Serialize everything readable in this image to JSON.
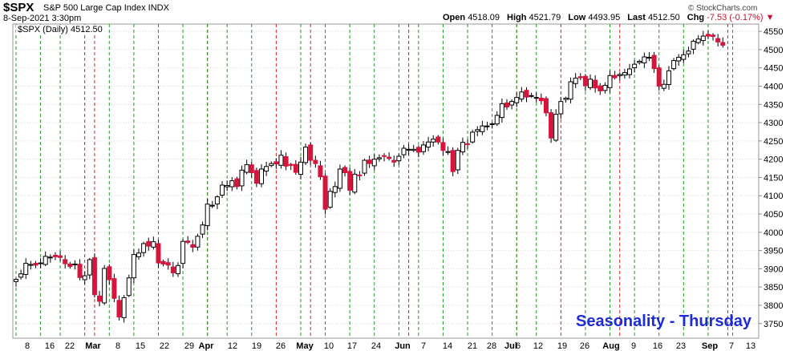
{
  "header": {
    "ticker": "$SPX",
    "description": "S&P 500 Large Cap Index INDX",
    "date": "8-Sep-2021 3:30pm",
    "watermark": "© StockCharts.com",
    "open_label": "Open",
    "open": "4518.09",
    "high_label": "High",
    "high": "4521.79",
    "low_label": "Low",
    "low": "4493.95",
    "last_label": "Last",
    "last": "4512.50",
    "chg_label": "Chg",
    "chg": "-7.53 (-0.17%)",
    "chg_arrow": "▼"
  },
  "legend": "$SPX (Daily) 4512.50",
  "annotation": "Seasonality - Thursday",
  "colors": {
    "up": "#ffffff",
    "down": "#d6143c",
    "green_line": "#1e9a1e",
    "red_line": "#d21e1e",
    "title": "#1f2bd6"
  },
  "chart_data": {
    "type": "candlestick",
    "y_axis": {
      "min": 3710,
      "max": 4570,
      "ticks": [
        3750,
        3800,
        3850,
        3900,
        3950,
        4000,
        4050,
        4100,
        4150,
        4200,
        4250,
        4300,
        4350,
        4400,
        4450,
        4500,
        4550
      ],
      "position": "right"
    },
    "x_labels": [
      "8",
      "16",
      "22",
      "Mar",
      "8",
      "15",
      "22",
      "29",
      "Apr",
      "12",
      "19",
      "26",
      "May",
      "10",
      "17",
      "24",
      "Jun",
      "7",
      "14",
      "21",
      "28",
      "Jul",
      "6",
      "12",
      "19",
      "26",
      "Aug",
      "9",
      "16",
      "23",
      "Sep",
      "7",
      "13"
    ],
    "start_date": "2021-02-04",
    "vertical_lines": {
      "thursday_green_dates": [
        "2021-02-04",
        "2021-02-11",
        "2021-02-18",
        "2021-03-04",
        "2021-03-11",
        "2021-03-18",
        "2021-03-25",
        "2021-04-01",
        "2021-04-08",
        "2021-04-15",
        "2021-04-29",
        "2021-05-06",
        "2021-05-13",
        "2021-05-20",
        "2021-05-27",
        "2021-06-03",
        "2021-06-10",
        "2021-06-17",
        "2021-06-24",
        "2021-07-01",
        "2021-07-08",
        "2021-07-22",
        "2021-07-29",
        "2021-08-05",
        "2021-08-12",
        "2021-08-19",
        "2021-08-26",
        "2021-09-02"
      ],
      "thursday_red_dates": [
        "2021-02-25",
        "2021-04-22",
        "2021-07-15"
      ],
      "month_red_dates": [
        "2021-03-01",
        "2021-04-01",
        "2021-05-03",
        "2021-06-01",
        "2021-07-01",
        "2021-08-02",
        "2021-09-01"
      ]
    },
    "closes": [
      3871,
      3886,
      3915,
      3912,
      3910,
      3916,
      3934,
      3932,
      3933,
      3931,
      3914,
      3906,
      3913,
      3876,
      3881,
      3925,
      3829,
      3811,
      3901,
      3870,
      3819,
      3768,
      3821,
      3875,
      3939,
      3943,
      3969,
      3962,
      3974,
      3916,
      3913,
      3910,
      3889,
      3909,
      3975,
      3972,
      3959,
      3989,
      4020,
      4077,
      4074,
      4097,
      4129,
      4128,
      4141,
      4125,
      4170,
      4185,
      4163,
      4134,
      4173,
      4180,
      4188,
      4187,
      4211,
      4181,
      4183,
      4164,
      4192,
      4233,
      4197,
      4188,
      4152,
      4063,
      4112,
      4125,
      4173,
      4163,
      4115,
      4159,
      4156,
      4197,
      4188,
      4200,
      4204,
      4208,
      4202,
      4192,
      4208,
      4230,
      4227,
      4227,
      4219,
      4239,
      4247,
      4255,
      4247,
      4224,
      4221,
      4166,
      4224,
      4246,
      4242,
      4274,
      4281,
      4291,
      4291,
      4297,
      4320,
      4352,
      4343,
      4358,
      4369,
      4384,
      4370,
      4374,
      4369,
      4360,
      4327,
      4258,
      4323,
      4358,
      4367,
      4412,
      4422,
      4423,
      4401,
      4419,
      4395,
      4387,
      4402,
      4429,
      4423,
      4432,
      4437,
      4447,
      4460,
      4468,
      4480,
      4479,
      4448,
      4400,
      4405,
      4442,
      4470,
      4479,
      4486,
      4496,
      4523,
      4529,
      4537,
      4537,
      4536,
      4521,
      4512
    ]
  }
}
